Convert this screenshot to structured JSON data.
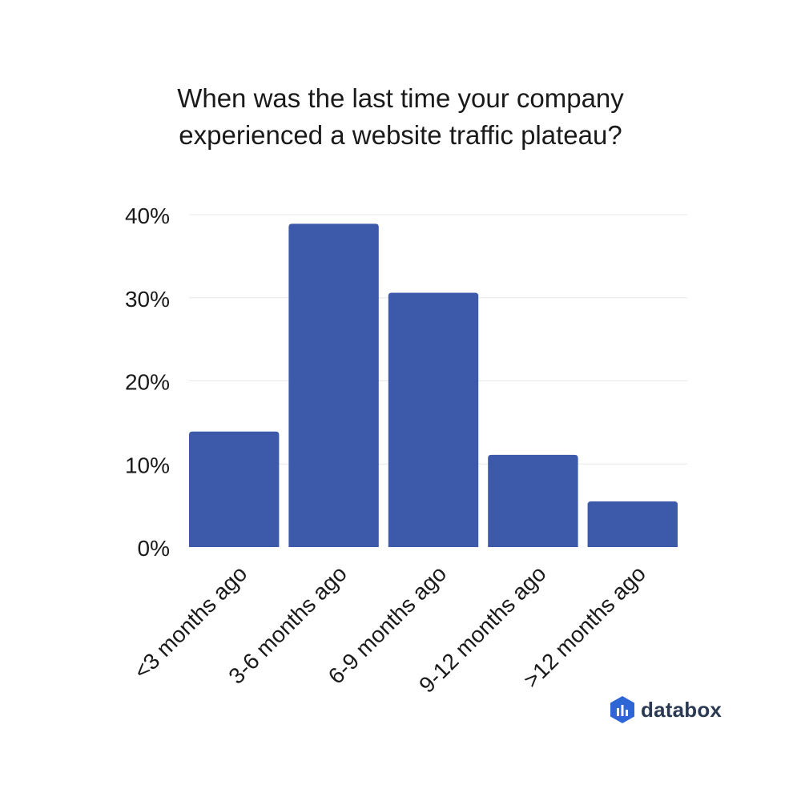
{
  "chart_data": {
    "type": "bar",
    "title_lines": [
      "When was the last time your company",
      "experienced a website traffic plateau?"
    ],
    "categories": [
      "<3 months ago",
      "3-6 months ago",
      "6-9 months ago",
      "9-12 months ago",
      ">12 months ago"
    ],
    "values": [
      13.9,
      38.9,
      30.6,
      11.1,
      5.5
    ],
    "unit": "%",
    "ylim": [
      0,
      40
    ],
    "yticks": [
      "0%",
      "10%",
      "20%",
      "30%",
      "40%"
    ],
    "ytick_values": [
      0,
      10,
      20,
      30,
      40
    ],
    "grid": true,
    "bar_color": "#3d59a9",
    "grid_color": "#e8e8e8"
  },
  "brand": {
    "logo_text": "databox",
    "logo_colors": [
      "#2f66d6",
      "#4a8af4"
    ]
  }
}
